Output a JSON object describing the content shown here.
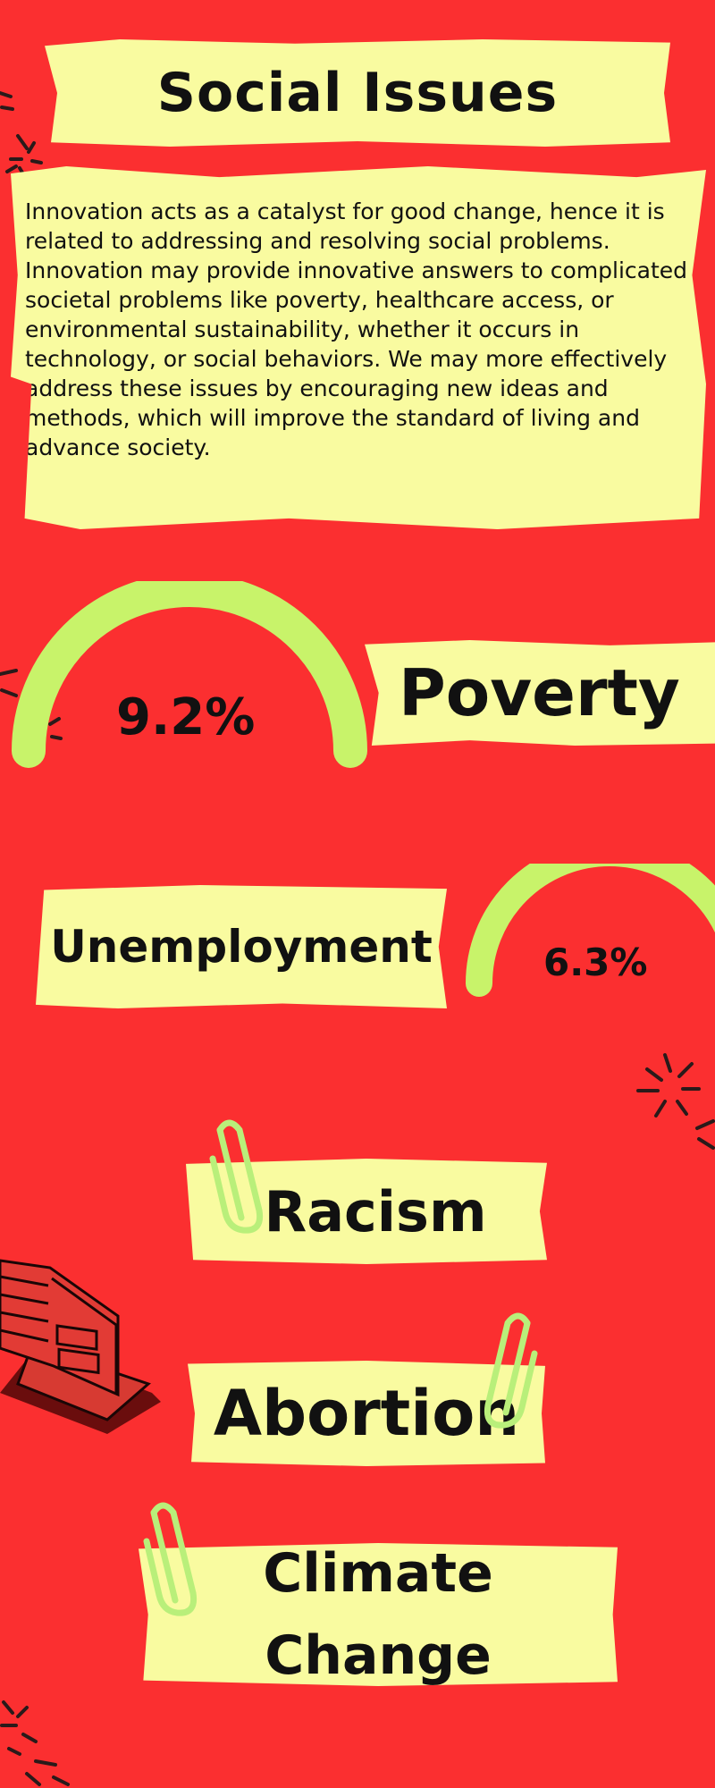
{
  "title": "Social Issues",
  "intro": "Innovation acts as a catalyst for good change, hence it is related to addressing and resolving social problems. Innovation may provide innovative answers to complicated societal problems like poverty, healthcare access, or environmental sustainability, whether it occurs in technology,  or social behaviors. We may more effectively address these issues by encouraging new ideas and methods, which will improve the standard of living and advance society.",
  "stats": {
    "poverty": {
      "label": "Poverty",
      "value": "9.2%"
    },
    "unemployment": {
      "label": "Unemployment",
      "value": "6.3%"
    }
  },
  "issues": {
    "racism": "Racism",
    "abortion": "Abortion",
    "climate_line1": "Climate",
    "climate_line2": "Change"
  },
  "colors": {
    "background": "#fb2f30",
    "paper": "#f9fba0",
    "gauge": "#c8f36a",
    "text": "#111111"
  },
  "icons": [
    "sparkle-icon",
    "paperclip-icon",
    "book-icon"
  ]
}
